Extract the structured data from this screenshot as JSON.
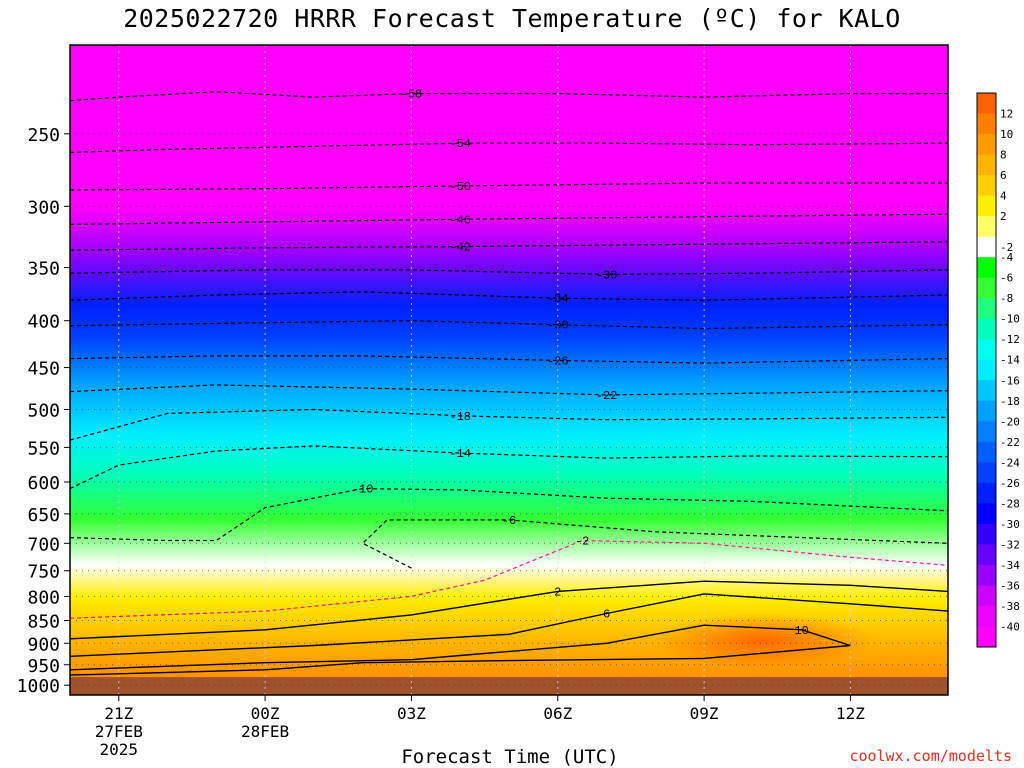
{
  "title": "2025022720 HRRR Forecast Temperature (ºC) for KALO",
  "xlabel": "Forecast Time (UTC)",
  "credit": "coolwx.com/modelts",
  "colors": {
    "background": "#ffffff",
    "ground": "#a0522d",
    "contour": "#000000",
    "freezing_line": "#ff1493"
  },
  "chart_data": {
    "type": "heatmap",
    "title": "2025022720 HRRR Forecast Temperature (ºC) for KALO",
    "xlabel": "Forecast Time (UTC)",
    "ylabel": "",
    "x_ticks": [
      {
        "hour": 0,
        "label": "21Z",
        "sub": [
          "27FEB",
          "2025"
        ]
      },
      {
        "hour": 3,
        "label": "00Z",
        "sub": [
          "28FEB"
        ]
      },
      {
        "hour": 6,
        "label": "03Z",
        "sub": []
      },
      {
        "hour": 9,
        "label": "06Z",
        "sub": []
      },
      {
        "hour": 12,
        "label": "09Z",
        "sub": []
      },
      {
        "hour": 15,
        "label": "12Z",
        "sub": []
      }
    ],
    "xlim": [
      -1,
      17
    ],
    "y_ticks": [
      1000,
      950,
      900,
      850,
      800,
      750,
      700,
      650,
      600,
      550,
      500,
      450,
      400,
      350,
      300,
      250
    ],
    "ylim": [
      1025,
      200
    ],
    "y_scale": "log",
    "grid": true,
    "colorbar": {
      "placement": "right",
      "labels": [
        "12",
        "10",
        "8",
        "6",
        "4",
        "2",
        "-2",
        "-4",
        "-6",
        "-8",
        "-10",
        "-12",
        "-14",
        "-16",
        "-18",
        "-20",
        "-22",
        "-24",
        "-26",
        "-28",
        "-30",
        "-32",
        "-34",
        "-36",
        "-38",
        "-40"
      ],
      "colors": [
        "#ff6000",
        "#ff8000",
        "#ff9a00",
        "#ffb400",
        "#ffd000",
        "#ffee00",
        "#ffff66",
        "#ffffff",
        "#00ff00",
        "#33ff33",
        "#20ff80",
        "#00ffbb",
        "#00ffee",
        "#00eeff",
        "#00c8ff",
        "#00a0ff",
        "#0080ff",
        "#0060ff",
        "#0040ff",
        "#0020ff",
        "#0000ff",
        "#3300ff",
        "#6600ff",
        "#9900ff",
        "#cc00ff",
        "#ee00ff",
        "#ff00ff"
      ]
    },
    "ground_below_hpa": 980,
    "isotherms": [
      {
        "label": "-58",
        "points": [
          [
            -1,
            230
          ],
          [
            0,
            228
          ],
          [
            2,
            225
          ],
          [
            4,
            228
          ],
          [
            6,
            226
          ],
          [
            9,
            226
          ],
          [
            12,
            228
          ],
          [
            15,
            226
          ],
          [
            17,
            226
          ]
        ]
      },
      {
        "label": "-54",
        "points": [
          [
            -1,
            262
          ],
          [
            1,
            260
          ],
          [
            4,
            258
          ],
          [
            7,
            256
          ],
          [
            10,
            256
          ],
          [
            13,
            257
          ],
          [
            17,
            256
          ]
        ]
      },
      {
        "label": "-50",
        "points": [
          [
            -1,
            288
          ],
          [
            3,
            287
          ],
          [
            7,
            285
          ],
          [
            12,
            283
          ],
          [
            17,
            283
          ]
        ]
      },
      {
        "label": "-46",
        "points": [
          [
            -1,
            314
          ],
          [
            3,
            312
          ],
          [
            7,
            310
          ],
          [
            12,
            308
          ],
          [
            17,
            306
          ]
        ]
      },
      {
        "label": "-42",
        "points": [
          [
            -1,
            335
          ],
          [
            3,
            333
          ],
          [
            7,
            332
          ],
          [
            12,
            330
          ],
          [
            17,
            328
          ]
        ]
      },
      {
        "label": "-38",
        "points": [
          [
            -1,
            355
          ],
          [
            3,
            352
          ],
          [
            6,
            352
          ],
          [
            10,
            356
          ],
          [
            13,
            355
          ],
          [
            17,
            352
          ]
        ]
      },
      {
        "label": "-34",
        "points": [
          [
            -1,
            380
          ],
          [
            2,
            375
          ],
          [
            5,
            372
          ],
          [
            9,
            378
          ],
          [
            12,
            380
          ],
          [
            17,
            375
          ]
        ]
      },
      {
        "label": "-30",
        "points": [
          [
            -1,
            405
          ],
          [
            3,
            402
          ],
          [
            6,
            400
          ],
          [
            9,
            404
          ],
          [
            12,
            408
          ],
          [
            17,
            404
          ]
        ]
      },
      {
        "label": "-26",
        "points": [
          [
            -1,
            440
          ],
          [
            2,
            437
          ],
          [
            5,
            437
          ],
          [
            9,
            442
          ],
          [
            12,
            445
          ],
          [
            17,
            440
          ]
        ]
      },
      {
        "label": "-22",
        "points": [
          [
            -1,
            478
          ],
          [
            2,
            470
          ],
          [
            6,
            475
          ],
          [
            10,
            482
          ],
          [
            13,
            480
          ],
          [
            17,
            477
          ]
        ]
      },
      {
        "label": "-18",
        "points": [
          [
            -1,
            540
          ],
          [
            1,
            505
          ],
          [
            4,
            500
          ],
          [
            7,
            508
          ],
          [
            10,
            513
          ],
          [
            13,
            512
          ],
          [
            17,
            510
          ]
        ]
      },
      {
        "label": "-14",
        "points": [
          [
            -1,
            610
          ],
          [
            0,
            575
          ],
          [
            2,
            555
          ],
          [
            4,
            548
          ],
          [
            7,
            558
          ],
          [
            10,
            565
          ],
          [
            13,
            562
          ],
          [
            17,
            563
          ]
        ]
      },
      {
        "label": "-10",
        "points": [
          [
            -1,
            690
          ],
          [
            1,
            695
          ],
          [
            2,
            695
          ],
          [
            3,
            640
          ],
          [
            5,
            610
          ],
          [
            7,
            612
          ],
          [
            10,
            625
          ],
          [
            13,
            630
          ],
          [
            17,
            645
          ]
        ]
      },
      {
        "label": "-6",
        "points": [
          [
            6,
            745
          ],
          [
            5,
            700
          ],
          [
            5.5,
            660
          ],
          [
            8,
            660
          ],
          [
            11,
            680
          ],
          [
            17,
            700
          ]
        ]
      },
      {
        "label": "-2",
        "points": [
          [
            -1,
            845
          ],
          [
            3,
            830
          ],
          [
            6,
            800
          ],
          [
            7.5,
            768
          ],
          [
            9.5,
            695
          ],
          [
            12,
            700
          ],
          [
            15,
            725
          ],
          [
            17,
            740
          ]
        ]
      },
      {
        "label": "2",
        "points": [
          [
            -1,
            890
          ],
          [
            3,
            870
          ],
          [
            6,
            838
          ],
          [
            9,
            790
          ],
          [
            12,
            770
          ],
          [
            15,
            778
          ],
          [
            17,
            790
          ]
        ]
      },
      {
        "label": "6",
        "points": [
          [
            -1,
            930
          ],
          [
            4,
            905
          ],
          [
            8,
            880
          ],
          [
            10,
            835
          ],
          [
            12,
            795
          ],
          [
            15,
            815
          ],
          [
            17,
            830
          ]
        ]
      },
      {
        "label": "10",
        "points": [
          [
            -1,
            962
          ],
          [
            3,
            945
          ],
          [
            6,
            938
          ],
          [
            7,
            928
          ],
          [
            10,
            900
          ],
          [
            12,
            860
          ],
          [
            14,
            870
          ],
          [
            15,
            905
          ],
          [
            12,
            935
          ],
          [
            8,
            940
          ],
          [
            5,
            945
          ],
          [
            3,
            962
          ],
          [
            -1,
            975
          ]
        ]
      }
    ]
  }
}
